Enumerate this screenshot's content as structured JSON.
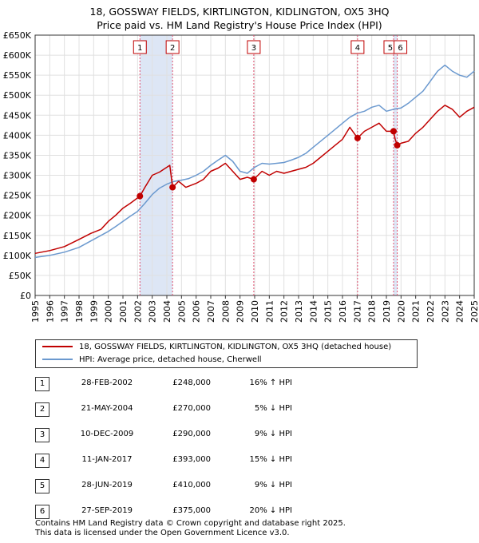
{
  "title_line1": "18, GOSSWAY FIELDS, KIRTLINGTON, KIDLINGTON, OX5 3HQ",
  "title_line2": "Price paid vs. HM Land Registry's House Price Index (HPI)",
  "colors": {
    "red": "#c00000",
    "blue": "#6b99cf",
    "marker_line": "#e05070",
    "shade": "#dde6f5",
    "grid": "#e0e0e0"
  },
  "legend": {
    "red_label": "18, GOSSWAY FIELDS, KIRTLINGTON, KIDLINGTON, OX5 3HQ (detached house)",
    "blue_label": "HPI: Average price, detached house, Cherwell"
  },
  "transactions": [
    {
      "num": "1",
      "date": "28-FEB-2002",
      "price": "£248,000",
      "delta": "16% ↑ HPI"
    },
    {
      "num": "2",
      "date": "21-MAY-2004",
      "price": "£270,000",
      "delta": "5% ↓ HPI"
    },
    {
      "num": "3",
      "date": "10-DEC-2009",
      "price": "£290,000",
      "delta": "9% ↓ HPI"
    },
    {
      "num": "4",
      "date": "11-JAN-2017",
      "price": "£393,000",
      "delta": "15% ↓ HPI"
    },
    {
      "num": "5",
      "date": "28-JUN-2019",
      "price": "£410,000",
      "delta": "9% ↓ HPI"
    },
    {
      "num": "6",
      "date": "27-SEP-2019",
      "price": "£375,000",
      "delta": "20% ↓ HPI"
    }
  ],
  "footer_line1": "Contains HM Land Registry data © Crown copyright and database right 2025.",
  "footer_line2": "This data is licensed under the Open Government Licence v3.0.",
  "chart_data": {
    "type": "line",
    "title": "18, GOSSWAY FIELDS, KIRTLINGTON, KIDLINGTON, OX5 3HQ — Price paid vs. HM Land Registry's House Price Index (HPI)",
    "xlabel": "",
    "ylabel": "",
    "xlim": [
      1995,
      2025
    ],
    "ylim": [
      0,
      650000
    ],
    "y_ticks": [
      0,
      50000,
      100000,
      150000,
      200000,
      250000,
      300000,
      350000,
      400000,
      450000,
      500000,
      550000,
      600000,
      650000
    ],
    "y_tick_labels": [
      "£0",
      "£50K",
      "£100K",
      "£150K",
      "£200K",
      "£250K",
      "£300K",
      "£350K",
      "£400K",
      "£450K",
      "£500K",
      "£550K",
      "£600K",
      "£650K"
    ],
    "x_ticks": [
      1995,
      1996,
      1997,
      1998,
      1999,
      2000,
      2001,
      2002,
      2003,
      2004,
      2005,
      2006,
      2007,
      2008,
      2009,
      2010,
      2011,
      2012,
      2013,
      2014,
      2015,
      2016,
      2017,
      2018,
      2019,
      2020,
      2021,
      2022,
      2023,
      2024,
      2025
    ],
    "x_tick_labels": [
      "1995",
      "1996",
      "1997",
      "1998",
      "1999",
      "2000",
      "2001",
      "2002",
      "2003",
      "2004",
      "2005",
      "2006",
      "2007",
      "2008",
      "2009",
      "2010",
      "2011",
      "2012",
      "2013",
      "2014",
      "2015",
      "2016",
      "2017",
      "2018",
      "2019",
      "2020",
      "2021",
      "2022",
      "2023",
      "2024",
      "2025"
    ],
    "grid": true,
    "shaded_spans": [
      [
        2002.16,
        2004.39
      ],
      [
        2019.49,
        2019.74
      ]
    ],
    "markers": [
      {
        "label": "1",
        "x": 2002.16,
        "y": 248000
      },
      {
        "label": "2",
        "x": 2004.39,
        "y": 270000
      },
      {
        "label": "3",
        "x": 2009.94,
        "y": 290000
      },
      {
        "label": "4",
        "x": 2017.03,
        "y": 393000
      },
      {
        "label": "5",
        "x": 2019.49,
        "y": 410000
      },
      {
        "label": "6",
        "x": 2019.74,
        "y": 375000
      }
    ],
    "series": [
      {
        "name": "18, GOSSWAY FIELDS, KIRTLINGTON, KIDLINGTON, OX5 3HQ (detached house)",
        "color": "#c00000",
        "x": [
          1995,
          1996,
          1997,
          1998,
          1998.8,
          1999.5,
          2000,
          2000.5,
          2001,
          2001.5,
          2002.16,
          2002.5,
          2003,
          2003.5,
          2004.2,
          2004.39,
          2004.8,
          2005.3,
          2006,
          2006.5,
          2007,
          2007.5,
          2008,
          2008.5,
          2009,
          2009.5,
          2009.94,
          2010.5,
          2011,
          2011.5,
          2012,
          2012.5,
          2013,
          2013.5,
          2014,
          2014.5,
          2015,
          2015.5,
          2016,
          2016.5,
          2017.03,
          2017.5,
          2018,
          2018.5,
          2019,
          2019.49,
          2019.6,
          2019.74,
          2020,
          2020.5,
          2021,
          2021.5,
          2022,
          2022.5,
          2023,
          2023.5,
          2024,
          2024.5,
          2025
        ],
        "y": [
          105000,
          112000,
          122000,
          140000,
          155000,
          165000,
          185000,
          200000,
          218000,
          230000,
          248000,
          270000,
          300000,
          308000,
          325000,
          270000,
          285000,
          270000,
          280000,
          290000,
          310000,
          318000,
          330000,
          310000,
          290000,
          295000,
          290000,
          310000,
          300000,
          310000,
          305000,
          310000,
          315000,
          320000,
          330000,
          345000,
          360000,
          375000,
          390000,
          420000,
          393000,
          410000,
          420000,
          430000,
          410000,
          410000,
          390000,
          375000,
          380000,
          385000,
          405000,
          420000,
          440000,
          460000,
          475000,
          465000,
          445000,
          460000,
          470000
        ]
      },
      {
        "name": "HPI: Average price, detached house, Cherwell",
        "color": "#6b99cf",
        "x": [
          1995,
          1996,
          1997,
          1998,
          1999,
          2000,
          2000.5,
          2001,
          2001.5,
          2002,
          2002.5,
          2003,
          2003.5,
          2004,
          2004.5,
          2005,
          2005.5,
          2006,
          2006.5,
          2007,
          2007.5,
          2008,
          2008.5,
          2009,
          2009.5,
          2010,
          2010.5,
          2011,
          2011.5,
          2012,
          2012.5,
          2013,
          2013.5,
          2014,
          2014.5,
          2015,
          2015.5,
          2016,
          2016.5,
          2017,
          2017.5,
          2018,
          2018.5,
          2019,
          2019.5,
          2020,
          2020.5,
          2021,
          2021.5,
          2022,
          2022.5,
          2023,
          2023.5,
          2024,
          2024.5,
          2025
        ],
        "y": [
          95000,
          100000,
          108000,
          120000,
          140000,
          160000,
          172000,
          185000,
          198000,
          210000,
          230000,
          252000,
          268000,
          278000,
          285000,
          288000,
          292000,
          300000,
          310000,
          325000,
          338000,
          350000,
          335000,
          310000,
          305000,
          320000,
          330000,
          328000,
          330000,
          332000,
          338000,
          345000,
          355000,
          370000,
          385000,
          400000,
          415000,
          430000,
          445000,
          455000,
          460000,
          470000,
          475000,
          460000,
          465000,
          468000,
          480000,
          495000,
          510000,
          535000,
          560000,
          575000,
          560000,
          550000,
          545000,
          560000
        ]
      }
    ]
  }
}
